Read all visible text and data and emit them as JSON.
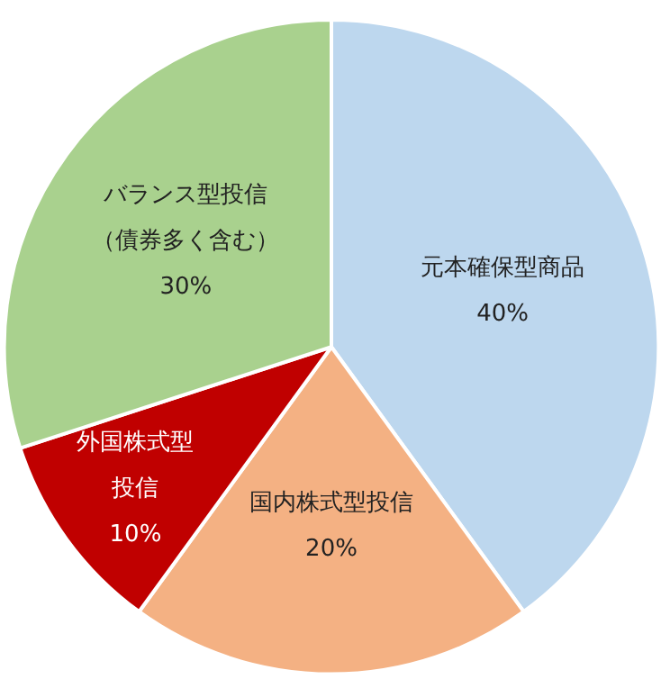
{
  "chart_data": {
    "type": "pie",
    "categories": [
      "元本確保型商品",
      "国内株式型投信",
      "外国株式型投信",
      "バランス型投信（債券多く含む）"
    ],
    "values": [
      40,
      20,
      10,
      30
    ],
    "colors": [
      "#bdd7ee",
      "#f4b183",
      "#c00000",
      "#a9d18e"
    ],
    "value_labels": [
      "40%",
      "20%",
      "10%",
      "30%"
    ]
  }
}
